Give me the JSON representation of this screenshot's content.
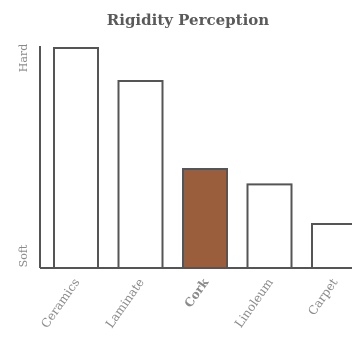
{
  "colors": {
    "title": "#5a5a5a",
    "axis": "#555555",
    "bar_stroke": "#555555",
    "bar_fill": "#ffffff",
    "highlight": "#9a5e3c",
    "label": "#8a8a8a"
  },
  "chart_data": {
    "type": "bar",
    "title": "Rigidity Perception",
    "xlabel": "",
    "ylabel": "",
    "y_axis_end_labels": {
      "top": "Hard",
      "bottom": "Soft"
    },
    "ylim": [
      0,
      100
    ],
    "grid": false,
    "legend": "none",
    "categories": [
      "Ceramics",
      "Laminate",
      "Cork",
      "Linoleum",
      "Carpet"
    ],
    "values": [
      100,
      85,
      45,
      38,
      20
    ],
    "highlight": "Cork"
  }
}
